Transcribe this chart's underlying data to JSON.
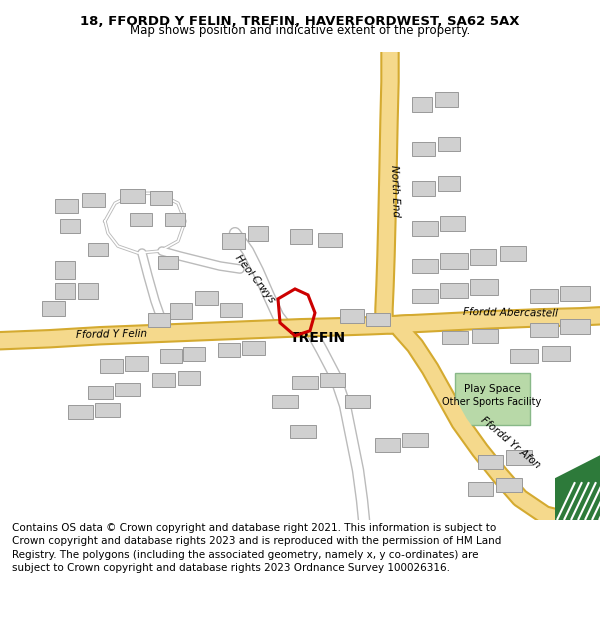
{
  "title_line1": "18, FFORDD Y FELIN, TREFIN, HAVERFORDWEST, SA62 5AX",
  "title_line2": "Map shows position and indicative extent of the property.",
  "footer_text": "Contains OS data © Crown copyright and database right 2021. This information is subject to Crown copyright and database rights 2023 and is reproduced with the permission of HM Land Registry. The polygons (including the associated geometry, namely x, y co-ordinates) are subject to Crown copyright and database rights 2023 Ordnance Survey 100026316.",
  "map_bg": "#f2f2f2",
  "road_color_main": "#f5d98c",
  "road_color_border": "#d4aa30",
  "road_color_minor": "#ffffff",
  "road_color_minor_border": "#bbbbbb",
  "building_color": "#d0d0d0",
  "building_edge": "#999999",
  "green_area_color": "#b8d9a8",
  "green_dark_color": "#2d7a3a",
  "plot_color": "#cc0000",
  "label_trefin": "TREFIN",
  "label_ffordd_y_felin": "Ffordd Y Felin",
  "label_north_end": "North End",
  "label_heol_crwys": "Heol Crwys",
  "label_ffordd_abercastell": "Ffordd Abercastell",
  "label_ffordd_yr_afon": "Ffordd Yr Afon",
  "label_play_space": "Play Space",
  "label_other_sports": "Other Sports Facility",
  "title_fontsize": 9.5,
  "subtitle_fontsize": 8.5,
  "footer_fontsize": 7.5,
  "label_fontsize": 7.5,
  "trefin_fontsize": 10
}
